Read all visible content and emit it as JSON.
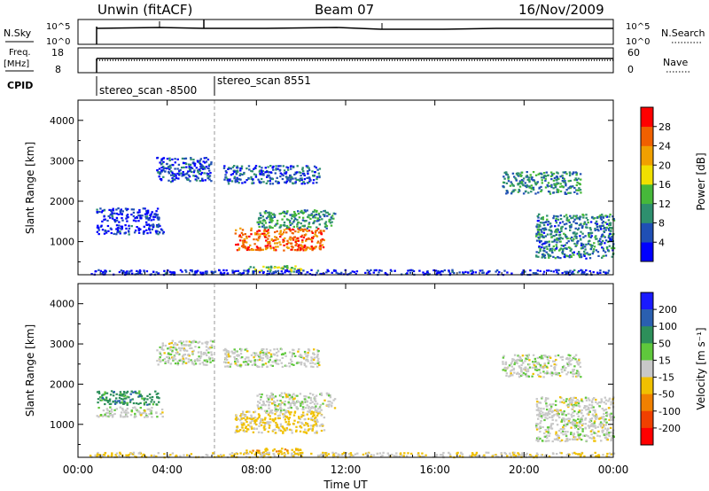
{
  "header": {
    "station": "Unwin (fitACF)",
    "beam": "Beam 07",
    "date": "16/Nov/2009"
  },
  "strips": {
    "nsky_label": "N.Sky",
    "nsky_ticks": [
      "10^5",
      "10^0"
    ],
    "nsearch_label": "N.Search",
    "nsearch_ticks": [
      "10^5",
      "10^0"
    ],
    "freq_label_1": "Freq.",
    "freq_label_2": "[MHz]",
    "freq_ticks": [
      "18",
      "8"
    ],
    "nave_label": "Nave",
    "nave_ticks": [
      "60",
      "0"
    ],
    "cpid_label": "CPID",
    "cpid_1": "stereo_scan -8500",
    "cpid_2": "stereo_scan 8551"
  },
  "colors": {
    "power": [
      "#0000ff",
      "#1f4fb5",
      "#2e8f6e",
      "#46b83a",
      "#f0e000",
      "#f0a000",
      "#f06000",
      "#ff0000"
    ],
    "velocity": [
      "#1a1aff",
      "#2a5fb0",
      "#2d8f5a",
      "#5fc83c",
      "#c8c8c8",
      "#f0c000",
      "#f08000",
      "#f04000",
      "#ff0000"
    ]
  },
  "chart_data": [
    {
      "type": "heatmap",
      "title": "Power",
      "xlabel": "",
      "ylabel": "Slant Range [km]",
      "xlim": [
        0,
        24
      ],
      "ylim": [
        180,
        4500
      ],
      "xticks": [
        "00:00",
        "04:00",
        "08:00",
        "12:00",
        "16:00",
        "20:00",
        "00:00"
      ],
      "yticks": [
        1000,
        2000,
        3000,
        4000
      ],
      "colorbar": {
        "label": "Power [dB]",
        "ticks": [
          "4",
          "8",
          "12",
          "16",
          "20",
          "24",
          "28"
        ],
        "range": [
          0,
          30
        ]
      },
      "regions": [
        {
          "x": [
            0.8,
            3.6
          ],
          "y": [
            1500,
            1850
          ],
          "value": 3
        },
        {
          "x": [
            0.8,
            3.8
          ],
          "y": [
            1200,
            1450
          ],
          "value": 3
        },
        {
          "x": [
            3.5,
            6.0
          ],
          "y": [
            2500,
            3100
          ],
          "value": 5
        },
        {
          "x": [
            6.5,
            10.8
          ],
          "y": [
            2450,
            2900
          ],
          "value": 6
        },
        {
          "x": [
            7.0,
            11.0
          ],
          "y": [
            800,
            1350
          ],
          "value": 24
        },
        {
          "x": [
            8.0,
            11.5
          ],
          "y": [
            1350,
            1800
          ],
          "value": 10
        },
        {
          "x": [
            7.5,
            10.0
          ],
          "y": [
            280,
            420
          ],
          "value": 14
        },
        {
          "x": [
            19.0,
            22.5
          ],
          "y": [
            2200,
            2750
          ],
          "value": 9
        },
        {
          "x": [
            20.5,
            24.0
          ],
          "y": [
            600,
            1700
          ],
          "value": 8
        },
        {
          "x": [
            0.5,
            24.0
          ],
          "y": [
            200,
            320
          ],
          "value": 3
        }
      ]
    },
    {
      "type": "heatmap",
      "title": "Velocity",
      "xlabel": "Time UT",
      "ylabel": "Slant Range [km]",
      "xlim": [
        0,
        24
      ],
      "ylim": [
        180,
        4500
      ],
      "xticks": [
        "00:00",
        "04:00",
        "08:00",
        "12:00",
        "16:00",
        "20:00",
        "00:00"
      ],
      "yticks": [
        1000,
        2000,
        3000,
        4000
      ],
      "colorbar": {
        "label": "Velocity [m s⁻¹]",
        "ticks": [
          "200",
          "100",
          "50",
          "15",
          "-15",
          "-50",
          "-100",
          "-200"
        ],
        "range": [
          -250,
          250
        ]
      },
      "regions": [
        {
          "x": [
            0.8,
            3.6
          ],
          "y": [
            1500,
            1850
          ],
          "value": 110
        },
        {
          "x": [
            0.8,
            3.8
          ],
          "y": [
            1200,
            1450
          ],
          "value": 5
        },
        {
          "x": [
            3.5,
            6.0
          ],
          "y": [
            2500,
            3100
          ],
          "value": 5
        },
        {
          "x": [
            6.5,
            10.8
          ],
          "y": [
            2450,
            2900
          ],
          "value": 5
        },
        {
          "x": [
            7.0,
            11.0
          ],
          "y": [
            800,
            1350
          ],
          "value": -40
        },
        {
          "x": [
            8.0,
            11.5
          ],
          "y": [
            1350,
            1800
          ],
          "value": 5
        },
        {
          "x": [
            7.5,
            10.0
          ],
          "y": [
            280,
            420
          ],
          "value": -70
        },
        {
          "x": [
            19.0,
            22.5
          ],
          "y": [
            2200,
            2750
          ],
          "value": 5
        },
        {
          "x": [
            20.5,
            24.0
          ],
          "y": [
            600,
            1700
          ],
          "value": 5
        },
        {
          "x": [
            0.5,
            24.0
          ],
          "y": [
            200,
            320
          ],
          "value": -30
        }
      ]
    }
  ]
}
